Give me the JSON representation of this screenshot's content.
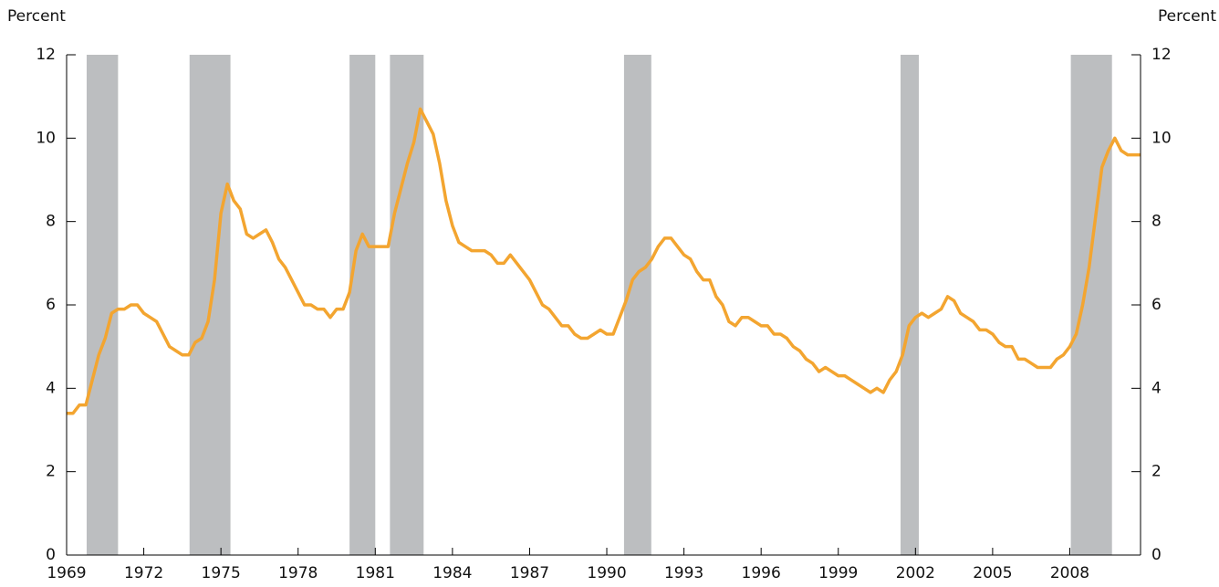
{
  "chart_data": {
    "type": "line",
    "y_axis_label": "Percent",
    "y2_axis_label": "Percent",
    "color": "#f3a530",
    "recession_color": "#bcbec0",
    "recessions": [
      {
        "start": 1969.78,
        "end": 1971.0
      },
      {
        "start": 1973.78,
        "end": 1975.37
      },
      {
        "start": 1980.0,
        "end": 1981.0
      },
      {
        "start": 1981.57,
        "end": 1982.88
      },
      {
        "start": 1990.67,
        "end": 1991.73
      },
      {
        "start": 2001.42,
        "end": 2002.13
      },
      {
        "start": 2008.04,
        "end": 2009.64
      }
    ],
    "x": [
      1969,
      1969.25,
      1969.5,
      1969.75,
      1970,
      1970.25,
      1970.5,
      1970.75,
      1971,
      1971.25,
      1971.5,
      1971.75,
      1972,
      1972.25,
      1972.5,
      1972.75,
      1973,
      1973.25,
      1973.5,
      1973.75,
      1974,
      1974.25,
      1974.5,
      1974.75,
      1975,
      1975.25,
      1975.5,
      1975.75,
      1976,
      1976.25,
      1976.5,
      1976.75,
      1977,
      1977.25,
      1977.5,
      1977.75,
      1978,
      1978.25,
      1978.5,
      1978.75,
      1979,
      1979.25,
      1979.5,
      1979.75,
      1980,
      1980.25,
      1980.5,
      1980.75,
      1981,
      1981.25,
      1981.5,
      1981.75,
      1982,
      1982.25,
      1982.5,
      1982.75,
      1983,
      1983.25,
      1983.5,
      1983.75,
      1984,
      1984.25,
      1984.5,
      1984.75,
      1985,
      1985.25,
      1985.5,
      1985.75,
      1986,
      1986.25,
      1986.5,
      1986.75,
      1987,
      1987.25,
      1987.5,
      1987.75,
      1988,
      1988.25,
      1988.5,
      1988.75,
      1989,
      1989.25,
      1989.5,
      1989.75,
      1990,
      1990.25,
      1990.5,
      1990.75,
      1991,
      1991.25,
      1991.5,
      1991.75,
      1992,
      1992.25,
      1992.5,
      1992.75,
      1993,
      1993.25,
      1993.5,
      1993.75,
      1994,
      1994.25,
      1994.5,
      1994.75,
      1995,
      1995.25,
      1995.5,
      1995.75,
      1996,
      1996.25,
      1996.5,
      1996.75,
      1997,
      1997.25,
      1997.5,
      1997.75,
      1998,
      1998.25,
      1998.5,
      1998.75,
      1999,
      1999.25,
      1999.5,
      1999.75,
      2000,
      2000.25,
      2000.5,
      2000.75,
      2001,
      2001.25,
      2001.5,
      2001.75,
      2002,
      2002.25,
      2002.5,
      2002.75,
      2003,
      2003.25,
      2003.5,
      2003.75,
      2004,
      2004.25,
      2004.5,
      2004.75,
      2005,
      2005.25,
      2005.5,
      2005.75,
      2006,
      2006.25,
      2006.5,
      2006.75,
      2007,
      2007.25,
      2007.5,
      2007.75,
      2008,
      2008.25,
      2008.5,
      2008.75,
      2009,
      2009.25,
      2009.5,
      2009.75,
      2010,
      2010.25,
      2010.5,
      2010.75
    ],
    "values": [
      3.4,
      3.4,
      3.6,
      3.6,
      4.2,
      4.8,
      5.2,
      5.8,
      5.9,
      5.9,
      6.0,
      6.0,
      5.8,
      5.7,
      5.6,
      5.3,
      5.0,
      4.9,
      4.8,
      4.8,
      5.1,
      5.2,
      5.6,
      6.6,
      8.2,
      8.9,
      8.5,
      8.3,
      7.7,
      7.6,
      7.7,
      7.8,
      7.5,
      7.1,
      6.9,
      6.6,
      6.3,
      6.0,
      6.0,
      5.9,
      5.9,
      5.7,
      5.9,
      5.9,
      6.3,
      7.3,
      7.7,
      7.4,
      7.4,
      7.4,
      7.4,
      8.2,
      8.8,
      9.4,
      9.9,
      10.7,
      10.4,
      10.1,
      9.4,
      8.5,
      7.9,
      7.5,
      7.4,
      7.3,
      7.3,
      7.3,
      7.2,
      7.0,
      7.0,
      7.2,
      7.0,
      6.8,
      6.6,
      6.3,
      6.0,
      5.9,
      5.7,
      5.5,
      5.5,
      5.3,
      5.2,
      5.2,
      5.3,
      5.4,
      5.3,
      5.3,
      5.7,
      6.1,
      6.6,
      6.8,
      6.9,
      7.1,
      7.4,
      7.6,
      7.6,
      7.4,
      7.2,
      7.1,
      6.8,
      6.6,
      6.6,
      6.2,
      6.0,
      5.6,
      5.5,
      5.7,
      5.7,
      5.6,
      5.5,
      5.5,
      5.3,
      5.3,
      5.2,
      5.0,
      4.9,
      4.7,
      4.6,
      4.4,
      4.5,
      4.4,
      4.3,
      4.3,
      4.2,
      4.1,
      4.0,
      3.9,
      4.0,
      3.9,
      4.2,
      4.4,
      4.8,
      5.5,
      5.7,
      5.8,
      5.7,
      5.8,
      5.9,
      6.2,
      6.1,
      5.8,
      5.7,
      5.6,
      5.4,
      5.4,
      5.3,
      5.1,
      5.0,
      5.0,
      4.7,
      4.7,
      4.6,
      4.5,
      4.5,
      4.5,
      4.7,
      4.8,
      5.0,
      5.3,
      6.0,
      6.9,
      8.1,
      9.3,
      9.7,
      10.0,
      9.7,
      9.6,
      9.6,
      9.6
    ],
    "xlim": [
      1969,
      2010.75
    ],
    "xticks": [
      1969,
      1972,
      1975,
      1978,
      1981,
      1984,
      1987,
      1990,
      1993,
      1996,
      1999,
      2002,
      2005,
      2008
    ],
    "ylim": [
      0,
      12
    ],
    "yticks": [
      0,
      2,
      4,
      6,
      8,
      10,
      12
    ],
    "y2lim": [
      0,
      12
    ],
    "y2ticks": [
      0,
      2,
      4,
      6,
      8,
      10,
      12
    ]
  }
}
